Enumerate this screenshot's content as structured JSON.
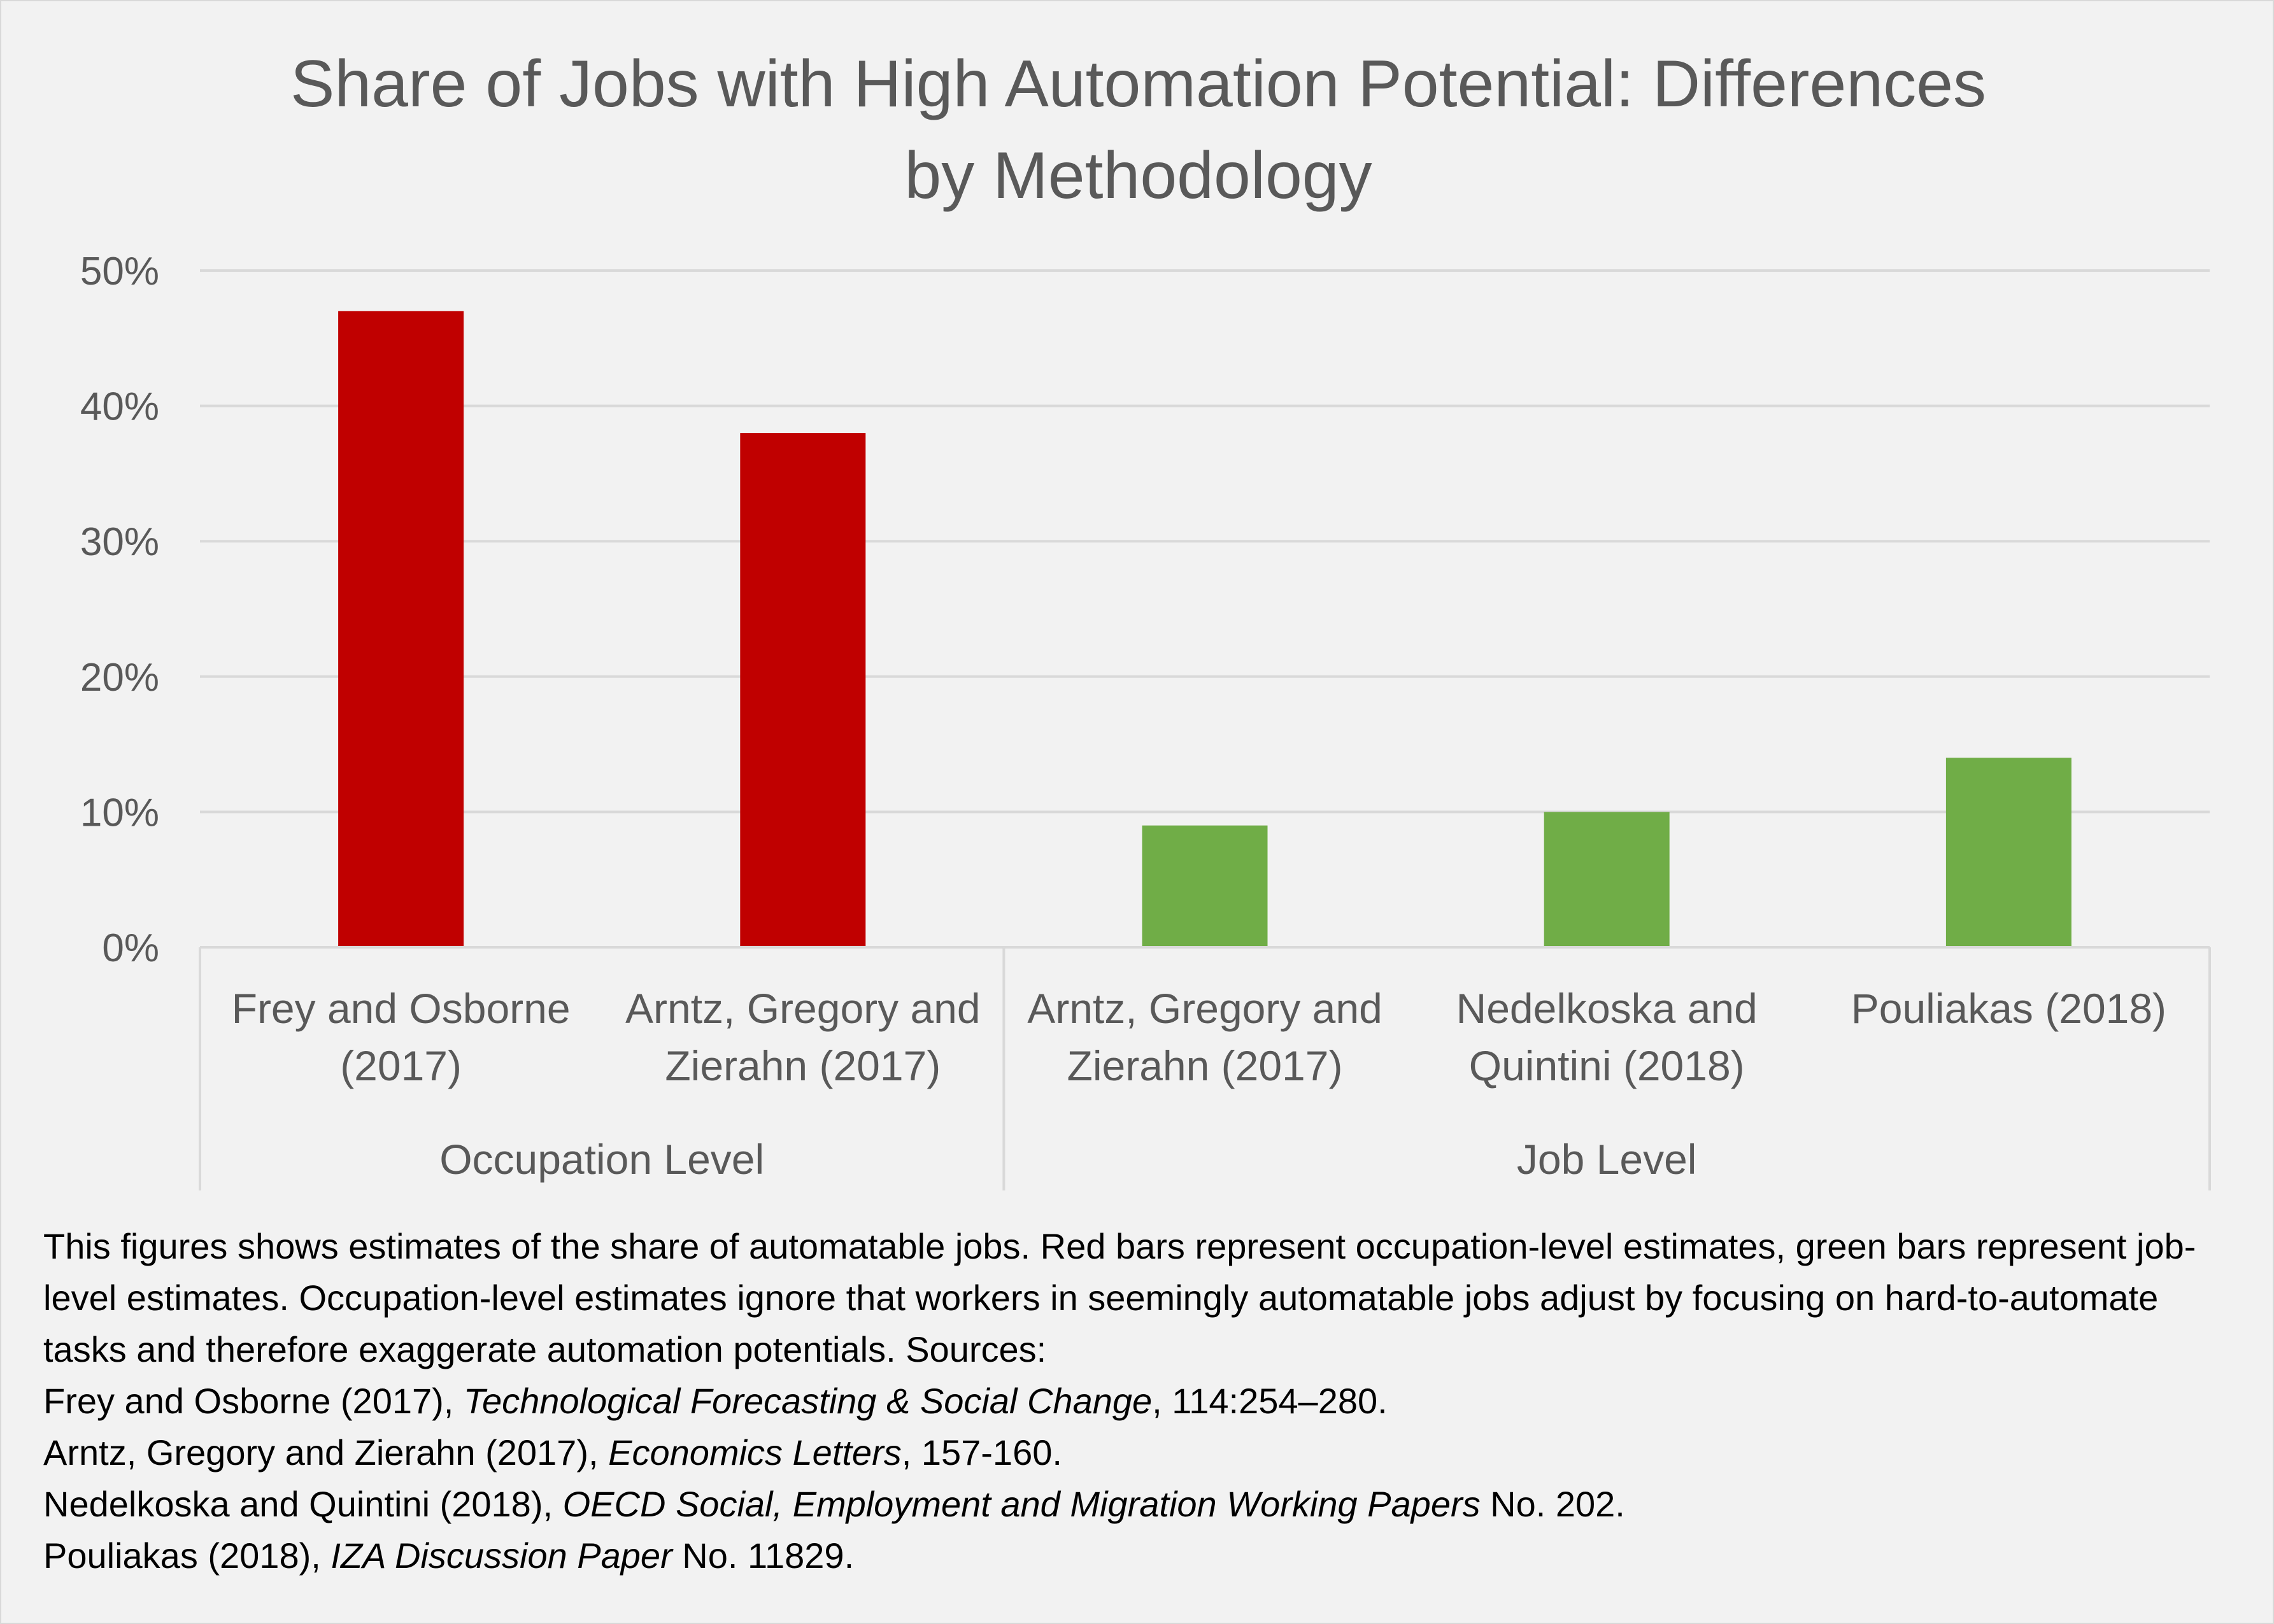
{
  "chart_data": {
    "type": "bar",
    "title": "Share of Jobs with High Automation Potential: Differences\nby Methodology",
    "xlabel": "",
    "ylabel": "",
    "ylim": [
      0,
      0.5
    ],
    "yticks": [
      0,
      0.1,
      0.2,
      0.3,
      0.4,
      0.5
    ],
    "ytick_labels": [
      "0%",
      "10%",
      "20%",
      "30%",
      "40%",
      "50%"
    ],
    "grid": true,
    "legend": "none",
    "categories": [
      [
        "Frey and Osborne",
        "(2017)"
      ],
      [
        "Arntz, Gregory and",
        "Zierahn (2017)"
      ],
      [
        "Arntz, Gregory and",
        "Zierahn (2017)"
      ],
      [
        "Nedelkoska and",
        "Quintini (2018)"
      ],
      [
        "Pouliakas (2018)"
      ]
    ],
    "values": [
      0.47,
      0.38,
      0.09,
      0.1,
      0.14
    ],
    "bar_colors": [
      "#c00000",
      "#c00000",
      "#70ad47",
      "#70ad47",
      "#70ad47"
    ],
    "groups": [
      {
        "label": "Occupation Level",
        "start": 0,
        "end": 1
      },
      {
        "label": "Job Level",
        "start": 2,
        "end": 4
      }
    ]
  },
  "caption": {
    "paragraph": "This figures shows estimates of the share of automatable jobs. Red bars represent occupation-level estimates, green bars represent job-level estimates. Occupation-level estimates ignore that workers in seemingly automatable jobs adjust by focusing on hard-to-automate tasks and therefore exaggerate automation potentials. Sources:",
    "sources": [
      {
        "author": "Frey and Osborne (2017), ",
        "journal": "Technological Forecasting & Social Change",
        "detail": ", 114:254–280."
      },
      {
        "author": "Arntz, Gregory and Zierahn (2017), ",
        "journal": "Economics Letters",
        "detail": ", 157-160."
      },
      {
        "author": "Nedelkoska and Quintini (2018), ",
        "journal": "OECD Social, Employment and Migration Working Papers",
        "detail": " No. 202."
      },
      {
        "author": "Pouliakas (2018), ",
        "journal": "IZA Discussion Paper",
        "detail": " No. 11829."
      }
    ]
  }
}
